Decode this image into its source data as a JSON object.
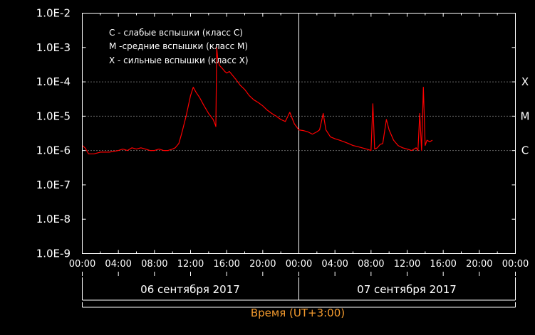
{
  "chart_data": {
    "type": "line",
    "title": "",
    "y_scale": "log",
    "ylim": [
      1e-09,
      0.01
    ],
    "y_tick_labels": [
      "1.0E-2",
      "1.0E-3",
      "1.0E-4",
      "1.0E-5",
      "1.0E-6",
      "1.0E-7",
      "1.0E-8",
      "1.0E-9"
    ],
    "x_range_hours": [
      0,
      48
    ],
    "x_tick_labels": [
      "00:00",
      "04:00",
      "08:00",
      "12:00",
      "16:00",
      "20:00",
      "00:00",
      "04:00",
      "08:00",
      "12:00",
      "16:00",
      "20:00",
      "00:00"
    ],
    "grid": "horizontal dotted at class thresholds",
    "threshold_lines": [
      {
        "label": "X",
        "value": 0.0001
      },
      {
        "label": "M",
        "value": 1e-05
      },
      {
        "label": "C",
        "value": 1e-06
      }
    ],
    "legend": {
      "placement": "top-left",
      "entries": [
        "C - слабые вспышки (класс С)",
        "M -средние вспышки (класс М)",
        "X - сильные вспышки (класс Х)"
      ]
    },
    "day_labels": [
      "06 сентября 2017",
      "07 сентября 2017"
    ],
    "xlabel": "Время (UT+3:00)",
    "series": [
      {
        "color": "#ff0000",
        "x_hours": [
          0,
          0.3,
          0.7,
          1.3,
          2,
          3,
          4,
          4.5,
          5,
          5.5,
          6,
          6.5,
          7,
          7.5,
          8,
          8.5,
          9,
          9.5,
          10,
          10.3,
          10.7,
          11,
          11.5,
          12,
          12.3,
          12.6,
          13,
          13.5,
          14,
          14.5,
          14.7,
          14.8,
          14.9,
          15.0,
          15.2,
          15.5,
          15.8,
          16,
          16.3,
          16.7,
          17,
          17.5,
          18,
          18.5,
          19,
          19.5,
          20,
          20.5,
          21,
          21.5,
          22,
          22.5,
          23,
          23.5,
          24,
          24.5,
          25,
          25.5,
          26,
          26.3,
          26.7,
          27,
          27.5,
          28,
          28.5,
          29,
          29.5,
          30,
          30.5,
          31,
          31.5,
          32,
          32.2,
          32.4,
          32.7,
          33,
          33.3,
          33.7,
          34,
          34.5,
          35,
          35.5,
          36,
          36.5,
          37,
          37.2,
          37.4,
          37.6,
          37.8,
          38,
          38.2,
          38.5,
          38.8
        ],
        "y_values": [
          1.4e-06,
          1.2e-06,
          8e-07,
          8e-07,
          9e-07,
          9e-07,
          1e-06,
          1.1e-06,
          1e-06,
          1.2e-06,
          1.1e-06,
          1.2e-06,
          1.1e-06,
          1e-06,
          1e-06,
          1.1e-06,
          1e-06,
          1e-06,
          1.1e-06,
          1.2e-06,
          1.6e-06,
          3e-06,
          1e-05,
          4e-05,
          7e-05,
          5e-05,
          3.5e-05,
          2e-05,
          1.2e-05,
          8e-06,
          6e-06,
          5e-06,
          0.001,
          0.0005,
          0.0003,
          0.00025,
          0.0002,
          0.00018,
          0.0002,
          0.00015,
          0.00012,
          8e-05,
          6e-05,
          4e-05,
          3e-05,
          2.5e-05,
          2e-05,
          1.5e-05,
          1.2e-05,
          1e-05,
          8e-06,
          7e-06,
          1.3e-05,
          6e-06,
          4e-06,
          3.8e-06,
          3.5e-06,
          3e-06,
          3.5e-06,
          4e-06,
          1.2e-05,
          4e-06,
          2.5e-06,
          2.2e-06,
          2e-06,
          1.8e-06,
          1.6e-06,
          1.4e-06,
          1.3e-06,
          1.2e-06,
          1.1e-06,
          1e-06,
          2.3e-05,
          1.1e-06,
          1.2e-06,
          1.5e-06,
          1.6e-06,
          8e-06,
          4e-06,
          2e-06,
          1.4e-06,
          1.2e-06,
          1.1e-06,
          1e-06,
          1.2e-06,
          1e-06,
          1.2e-05,
          1e-06,
          7e-05,
          1.4e-06,
          2e-06,
          1.8e-06,
          2e-06
        ]
      }
    ]
  }
}
